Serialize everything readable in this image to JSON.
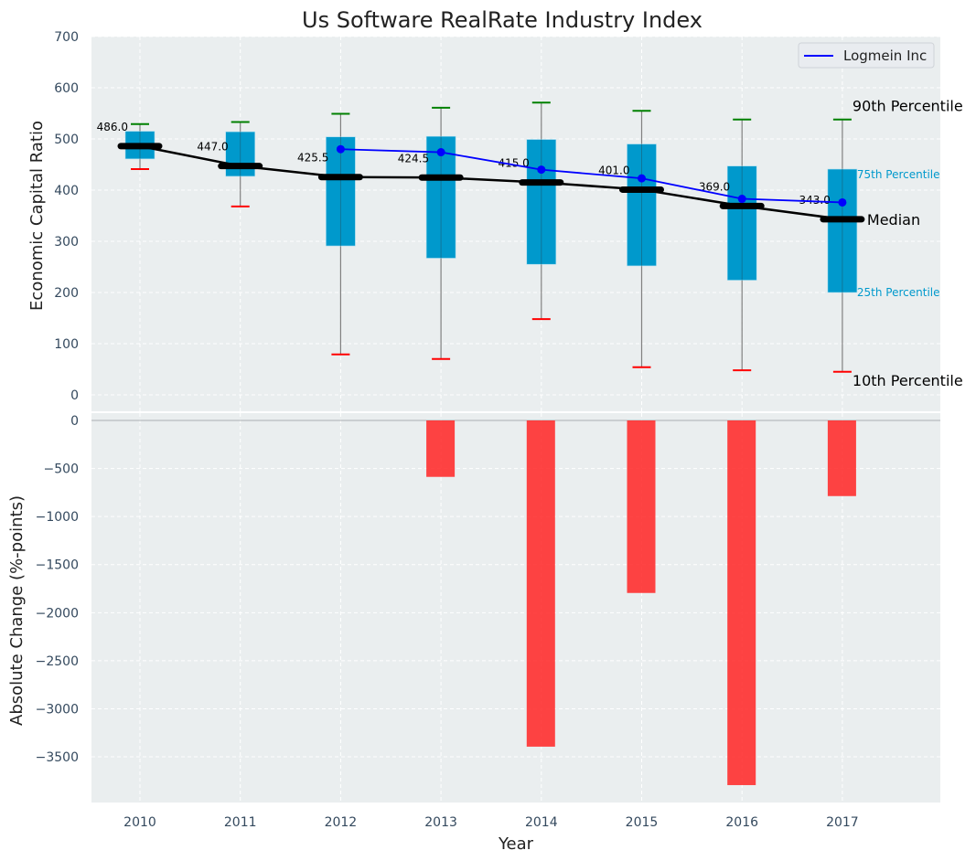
{
  "chart_data": [
    {
      "type": "box",
      "title": "Us Software RealRate Industry Index",
      "xlabel": "",
      "ylabel": "Economic Capital Ratio",
      "ylim": [
        0,
        700
      ],
      "yticks": [
        0,
        100,
        200,
        300,
        400,
        500,
        600,
        700
      ],
      "grid": true,
      "categories": [
        "2010",
        "2011",
        "2012",
        "2013",
        "2014",
        "2015",
        "2016",
        "2017"
      ],
      "percentiles": {
        "p10": [
          441,
          368,
          79,
          70,
          148,
          54,
          48,
          45
        ],
        "p25": [
          461,
          427,
          291,
          267,
          255,
          252,
          224,
          200
        ],
        "median": [
          486.0,
          447.0,
          425.5,
          424.5,
          415.0,
          401.0,
          369.0,
          343.0
        ],
        "p75": [
          515,
          514,
          504,
          505,
          499,
          490,
          447,
          441
        ],
        "p90": [
          529,
          533,
          549,
          561,
          571,
          555,
          538,
          538
        ]
      },
      "median_labels": [
        "486.0",
        "447.0",
        "425.5",
        "424.5",
        "415.0",
        "401.0",
        "369.0",
        "343.0"
      ],
      "series": [
        {
          "name": "Logmein Inc",
          "color": "#0000ff",
          "values": [
            null,
            null,
            480,
            474,
            440,
            423,
            383,
            376
          ]
        }
      ],
      "legend": {
        "placement": "top-right",
        "entries": [
          "Logmein Inc"
        ]
      },
      "annotations": {
        "p90": "90th Percentile",
        "p75": "75th Percentile",
        "median": "Median",
        "p25": "25th Percentile",
        "p10": "10th Percentile"
      },
      "colors": {
        "box": "#0099cc",
        "p90": "#008000",
        "p10": "#ff0000",
        "median": "#000000",
        "whisker": "#808080",
        "annot_small": "#0099cc"
      }
    },
    {
      "type": "bar",
      "xlabel": "Year",
      "ylabel": "Absolute Change (%-points)",
      "ylim": [
        -3975,
        0
      ],
      "yticks": [
        0,
        -500,
        -1000,
        -1500,
        -2000,
        -2500,
        -3000,
        -3500
      ],
      "ytick_labels": [
        "0",
        "−500",
        "−1000",
        "−1500",
        "−2000",
        "−2500",
        "−3000",
        "−3500"
      ],
      "grid": true,
      "categories": [
        "2010",
        "2011",
        "2012",
        "2013",
        "2014",
        "2015",
        "2016",
        "2017"
      ],
      "values": [
        0,
        0,
        0,
        -587,
        -3394,
        -1795,
        -3794,
        -787
      ],
      "color": "#ff2a2a"
    }
  ]
}
